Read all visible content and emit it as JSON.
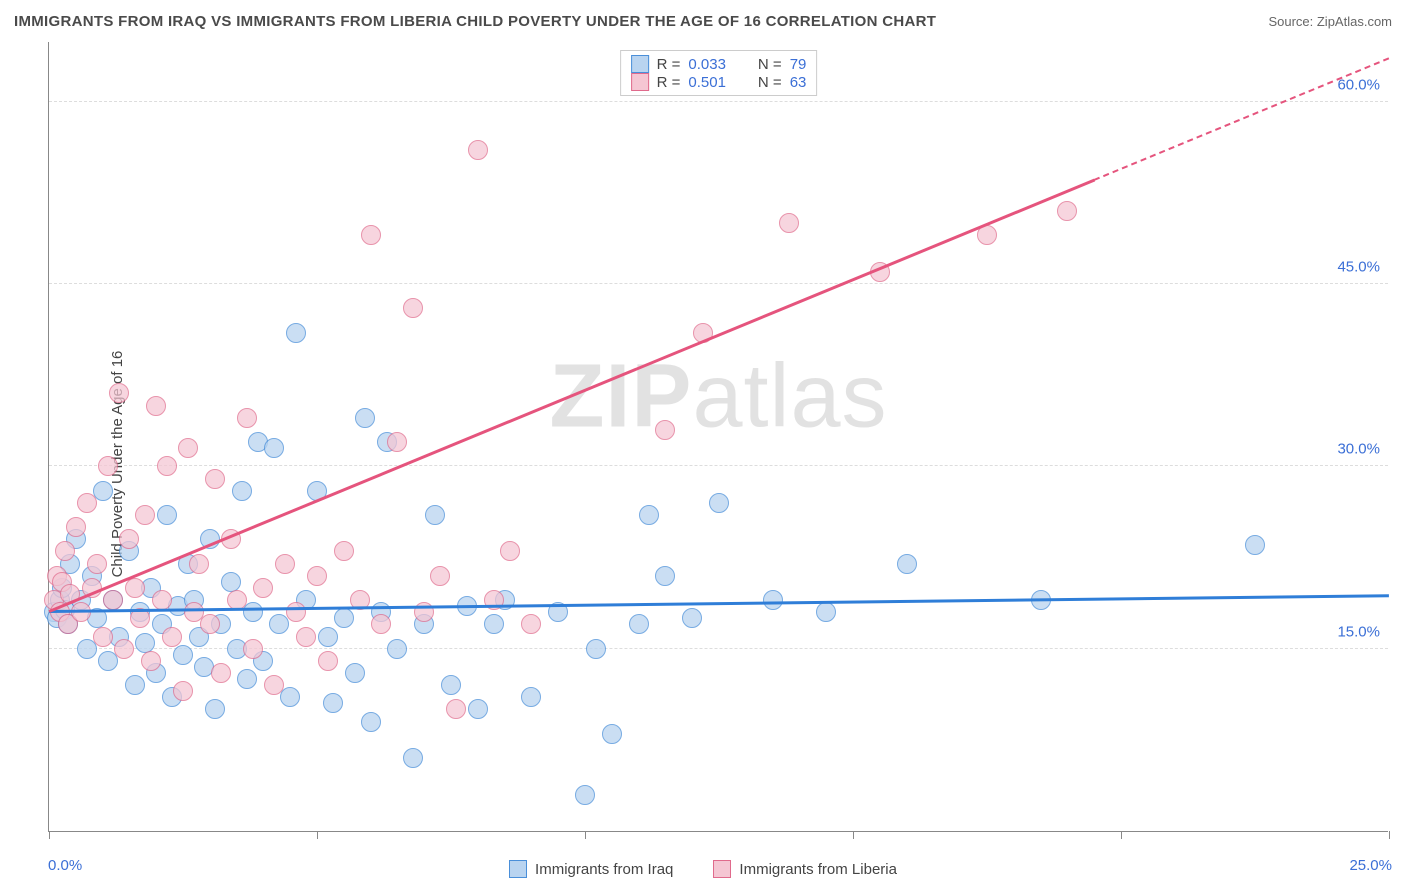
{
  "header": {
    "title": "IMMIGRANTS FROM IRAQ VS IMMIGRANTS FROM LIBERIA CHILD POVERTY UNDER THE AGE OF 16 CORRELATION CHART",
    "source": "Source: ZipAtlas.com"
  },
  "chart": {
    "type": "scatter",
    "ylabel": "Child Poverty Under the Age of 16",
    "watermark": "ZIPatlas",
    "xlim": [
      0,
      25
    ],
    "ylim": [
      0,
      65
    ],
    "x_ticks": [
      0,
      5,
      10,
      15,
      20,
      25
    ],
    "x_tick_labels": {
      "min": "0.0%",
      "max": "25.0%"
    },
    "y_gridlines": [
      15,
      30,
      45,
      60
    ],
    "y_tick_labels": [
      "15.0%",
      "30.0%",
      "45.0%",
      "60.0%"
    ],
    "background_color": "#ffffff",
    "grid_color": "#dddddd",
    "axis_color": "#888888",
    "tick_label_color": "#3b6fd6",
    "point_radius": 10,
    "series": [
      {
        "name": "Immigrants from Iraq",
        "fill": "#b9d4f0",
        "stroke": "#4a8fd9",
        "opacity": 0.75,
        "R": 0.033,
        "N": 79,
        "trend": {
          "start": [
            0,
            18.0
          ],
          "end": [
            25,
            19.3
          ],
          "color": "#2f7ed8",
          "width": 2.5
        },
        "points": [
          [
            0.1,
            18
          ],
          [
            0.2,
            19
          ],
          [
            0.15,
            17.5
          ],
          [
            0.3,
            18.2
          ],
          [
            0.25,
            20
          ],
          [
            0.4,
            22
          ],
          [
            0.35,
            17
          ],
          [
            0.5,
            24
          ],
          [
            0.6,
            19
          ],
          [
            0.7,
            15
          ],
          [
            0.8,
            21
          ],
          [
            0.9,
            17.5
          ],
          [
            1.0,
            28
          ],
          [
            1.1,
            14
          ],
          [
            1.2,
            19
          ],
          [
            1.3,
            16
          ],
          [
            1.5,
            23
          ],
          [
            1.6,
            12
          ],
          [
            1.7,
            18
          ],
          [
            1.8,
            15.5
          ],
          [
            1.9,
            20
          ],
          [
            2.0,
            13
          ],
          [
            2.1,
            17
          ],
          [
            2.2,
            26
          ],
          [
            2.3,
            11
          ],
          [
            2.4,
            18.5
          ],
          [
            2.5,
            14.5
          ],
          [
            2.6,
            22
          ],
          [
            2.7,
            19
          ],
          [
            2.8,
            16
          ],
          [
            2.9,
            13.5
          ],
          [
            3.0,
            24
          ],
          [
            3.1,
            10
          ],
          [
            3.2,
            17
          ],
          [
            3.4,
            20.5
          ],
          [
            3.5,
            15
          ],
          [
            3.6,
            28
          ],
          [
            3.7,
            12.5
          ],
          [
            3.8,
            18
          ],
          [
            3.9,
            32
          ],
          [
            4.0,
            14
          ],
          [
            4.2,
            31.5
          ],
          [
            4.3,
            17
          ],
          [
            4.5,
            11
          ],
          [
            4.6,
            41
          ],
          [
            4.8,
            19
          ],
          [
            5.0,
            28
          ],
          [
            5.2,
            16
          ],
          [
            5.3,
            10.5
          ],
          [
            5.5,
            17.5
          ],
          [
            5.7,
            13
          ],
          [
            5.9,
            34
          ],
          [
            6.0,
            9
          ],
          [
            6.2,
            18
          ],
          [
            6.3,
            32
          ],
          [
            6.5,
            15
          ],
          [
            6.8,
            6
          ],
          [
            7.0,
            17
          ],
          [
            7.2,
            26
          ],
          [
            7.5,
            12
          ],
          [
            7.8,
            18.5
          ],
          [
            8.0,
            10
          ],
          [
            8.3,
            17
          ],
          [
            8.5,
            19
          ],
          [
            9.0,
            11
          ],
          [
            9.5,
            18
          ],
          [
            10.0,
            3
          ],
          [
            10.2,
            15
          ],
          [
            10.5,
            8
          ],
          [
            11.0,
            17
          ],
          [
            11.2,
            26
          ],
          [
            11.5,
            21
          ],
          [
            12.0,
            17.5
          ],
          [
            12.5,
            27
          ],
          [
            13.5,
            19
          ],
          [
            14.5,
            18
          ],
          [
            16.0,
            22
          ],
          [
            18.5,
            19
          ],
          [
            22.5,
            23.5
          ]
        ]
      },
      {
        "name": "Immigrants from Liberia",
        "fill": "#f5c6d3",
        "stroke": "#e06a8c",
        "opacity": 0.72,
        "R": 0.501,
        "N": 63,
        "trend": {
          "start": [
            0,
            18.0
          ],
          "end": [
            25,
            63.5
          ],
          "color": "#e5547d",
          "width": 2.5,
          "dash_from_x": 19.5
        },
        "points": [
          [
            0.1,
            19
          ],
          [
            0.15,
            21
          ],
          [
            0.2,
            18
          ],
          [
            0.25,
            20.5
          ],
          [
            0.3,
            23
          ],
          [
            0.35,
            17
          ],
          [
            0.4,
            19.5
          ],
          [
            0.5,
            25
          ],
          [
            0.6,
            18
          ],
          [
            0.7,
            27
          ],
          [
            0.8,
            20
          ],
          [
            0.9,
            22
          ],
          [
            1.0,
            16
          ],
          [
            1.1,
            30
          ],
          [
            1.2,
            19
          ],
          [
            1.3,
            36
          ],
          [
            1.4,
            15
          ],
          [
            1.5,
            24
          ],
          [
            1.6,
            20
          ],
          [
            1.7,
            17.5
          ],
          [
            1.8,
            26
          ],
          [
            1.9,
            14
          ],
          [
            2.0,
            35
          ],
          [
            2.1,
            19
          ],
          [
            2.2,
            30
          ],
          [
            2.3,
            16
          ],
          [
            2.5,
            11.5
          ],
          [
            2.6,
            31.5
          ],
          [
            2.7,
            18
          ],
          [
            2.8,
            22
          ],
          [
            3.0,
            17
          ],
          [
            3.1,
            29
          ],
          [
            3.2,
            13
          ],
          [
            3.4,
            24
          ],
          [
            3.5,
            19
          ],
          [
            3.7,
            34
          ],
          [
            3.8,
            15
          ],
          [
            4.0,
            20
          ],
          [
            4.2,
            12
          ],
          [
            4.4,
            22
          ],
          [
            4.6,
            18
          ],
          [
            4.8,
            16
          ],
          [
            5.0,
            21
          ],
          [
            5.2,
            14
          ],
          [
            5.5,
            23
          ],
          [
            5.8,
            19
          ],
          [
            6.0,
            49
          ],
          [
            6.2,
            17
          ],
          [
            6.5,
            32
          ],
          [
            6.8,
            43
          ],
          [
            7.0,
            18
          ],
          [
            7.3,
            21
          ],
          [
            7.6,
            10
          ],
          [
            8.0,
            56
          ],
          [
            8.3,
            19
          ],
          [
            8.6,
            23
          ],
          [
            9.0,
            17
          ],
          [
            11.5,
            33
          ],
          [
            12.2,
            41
          ],
          [
            13.8,
            50
          ],
          [
            15.5,
            46
          ],
          [
            17.5,
            49
          ],
          [
            19.0,
            51
          ]
        ]
      }
    ],
    "legend_bottom": [
      {
        "label": "Immigrants from Iraq",
        "fill": "#b9d4f0",
        "stroke": "#4a8fd9"
      },
      {
        "label": "Immigrants from Liberia",
        "fill": "#f5c6d3",
        "stroke": "#e06a8c"
      }
    ]
  }
}
